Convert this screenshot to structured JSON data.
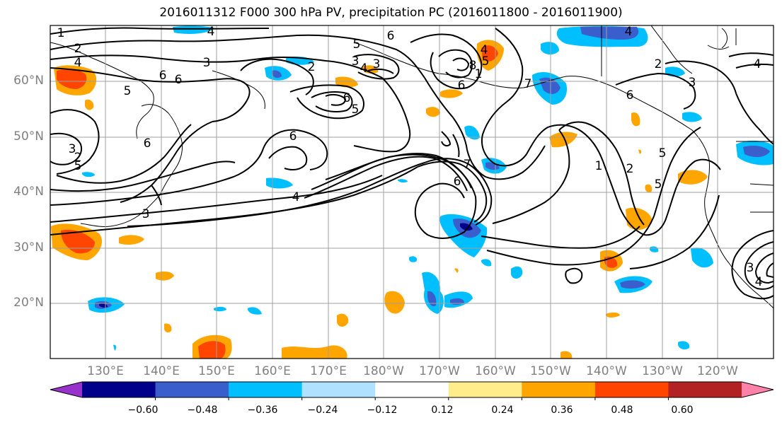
{
  "title": "2016011312 F000 300 hPa PV, precipitation PC (2016011800 - 2016011900)",
  "lat_labels": [
    "60°N",
    "50°N",
    "40°N",
    "30°N",
    "20°N"
  ],
  "lon_labels": [
    "130°E",
    "140°E",
    "150°E",
    "160°E",
    "170°E",
    "180°W",
    "170°W",
    "160°W",
    "150°W",
    "140°W",
    "130°W",
    "120°W"
  ],
  "colorbar": {
    "tick_labels": [
      "−0.60",
      "−0.48",
      "−0.36",
      "−0.24",
      "−0.12",
      "0.12",
      "0.24",
      "0.36",
      "0.48",
      "0.60"
    ],
    "colors": [
      "#9932cc",
      "#00008b",
      "#3a5fcd",
      "#00bfff",
      "#b0e2ff",
      "#ffffff",
      "#ffec8b",
      "#ffa500",
      "#ff4500",
      "#b22222",
      "#ff82ab"
    ]
  },
  "contour_labels": [
    "1",
    "2",
    "4",
    "3",
    "5",
    "6",
    "6",
    "4",
    "3",
    "5",
    "2",
    "2",
    "3",
    "6",
    "5",
    "6",
    "6",
    "3",
    "4",
    "5",
    "6",
    "3",
    "4",
    "7",
    "6",
    "4",
    "6",
    "5",
    "8",
    "1",
    "7",
    "4",
    "2",
    "5",
    "6",
    "2",
    "5",
    "3",
    "4",
    "1",
    "4",
    "3"
  ]
}
